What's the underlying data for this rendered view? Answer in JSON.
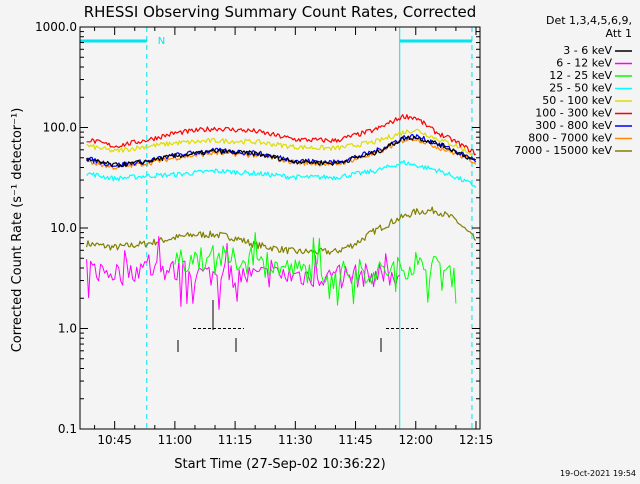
{
  "chart_data": {
    "type": "line",
    "title": "RHESSI Observing Summary Count Rates, Corrected",
    "xlabel": "Start Time (27-Sep-02 10:36:22)",
    "ylabel": "Corrected Count Rate (s⁻¹ detector⁻¹)",
    "y_scale": "log",
    "ylim": [
      0.1,
      1000
    ],
    "y_ticks": [
      {
        "value": 0.1,
        "label": "0.1"
      },
      {
        "value": 1,
        "label": "1.0"
      },
      {
        "value": 10,
        "label": "10.0"
      },
      {
        "value": 100,
        "label": "100.0"
      },
      {
        "value": 1000,
        "label": "1000.0"
      }
    ],
    "xlim_minutes": [
      10.6,
      2.0
    ],
    "x_range": [
      "10:36:22",
      "12:16"
    ],
    "x_ticks": [
      {
        "time": "10:45",
        "label": "10:45"
      },
      {
        "time": "11:00",
        "label": "11:00"
      },
      {
        "time": "11:15",
        "label": "11:15"
      },
      {
        "time": "11:30",
        "label": "11:30"
      },
      {
        "time": "11:45",
        "label": "11:45"
      },
      {
        "time": "12:00",
        "label": "12:00"
      },
      {
        "time": "12:15",
        "label": "12:15"
      }
    ],
    "legend_placement": "top-right outside",
    "legend_header": [
      "Det 1,3,4,5,6,9,",
      "Att 1"
    ],
    "timestamp": "19-Oct-2021 19:54",
    "annotations": [
      {
        "text": "N",
        "time": "10:55"
      }
    ],
    "night_intervals": [
      {
        "start": "10:36:22",
        "end": "10:53"
      },
      {
        "start": "11:56",
        "end": "12:14"
      }
    ],
    "vertical_markers": [
      "10:36:22",
      "10:53",
      "11:56",
      "12:14"
    ],
    "grid": false,
    "series": [
      {
        "name": "3 - 6 keV",
        "color": "#000000",
        "times": [
          "10:38",
          "10:45",
          "10:50",
          "11:00",
          "11:10",
          "11:20",
          "11:30",
          "11:40",
          "11:50",
          "11:57",
          "12:00",
          "12:05",
          "12:10",
          "12:15"
        ],
        "values": [
          48,
          42,
          44,
          52,
          58,
          55,
          46,
          44,
          56,
          78,
          80,
          70,
          58,
          46
        ]
      },
      {
        "name": "6 - 12 keV",
        "color": "#ff00ff",
        "times": [
          "10:38",
          "10:45",
          "10:53",
          "11:00",
          "11:10",
          "11:20",
          "11:30",
          "11:40",
          "11:50",
          "11:56"
        ],
        "values": [
          3.8,
          3.6,
          4.0,
          3.7,
          3.4,
          3.3,
          3.4,
          3.3,
          3.4,
          3.4
        ]
      },
      {
        "name": "12 - 25 keV",
        "color": "#00ff00",
        "times": [
          "11:00",
          "11:05",
          "11:10",
          "11:15",
          "11:20",
          "11:30",
          "11:40",
          "11:50",
          "11:56",
          "12:00",
          "12:05",
          "12:10"
        ],
        "values": [
          4.5,
          5.0,
          5.2,
          4.8,
          4.4,
          3.8,
          3.6,
          3.6,
          4.0,
          4.2,
          4.0,
          3.6
        ]
      },
      {
        "name": "25 - 50 keV",
        "color": "#00ffff",
        "times": [
          "10:38",
          "10:45",
          "10:53",
          "11:00",
          "11:10",
          "11:20",
          "11:30",
          "11:40",
          "11:50",
          "11:57",
          "12:00",
          "12:05",
          "12:10",
          "12:15"
        ],
        "values": [
          35,
          31,
          33,
          34,
          37,
          35,
          32,
          32,
          37,
          45,
          42,
          38,
          32,
          26
        ]
      },
      {
        "name": "50 - 100 keV",
        "color": "#dddd00",
        "times": [
          "10:38",
          "10:45",
          "10:53",
          "11:00",
          "11:10",
          "11:20",
          "11:30",
          "11:40",
          "11:50",
          "11:57",
          "12:00",
          "12:05",
          "12:10",
          "12:15"
        ],
        "values": [
          66,
          58,
          65,
          70,
          74,
          72,
          64,
          62,
          72,
          90,
          95,
          78,
          66,
          52
        ]
      },
      {
        "name": "100 - 300 keV",
        "color": "#ff0000",
        "times": [
          "10:38",
          "10:45",
          "10:53",
          "11:00",
          "11:10",
          "11:20",
          "11:30",
          "11:40",
          "11:50",
          "11:57",
          "12:00",
          "12:05",
          "12:10",
          "12:15"
        ],
        "values": [
          76,
          65,
          75,
          88,
          98,
          92,
          76,
          74,
          95,
          130,
          125,
          90,
          72,
          55
        ]
      },
      {
        "name": "300 - 800 keV",
        "color": "#0000ff",
        "times": [
          "10:38",
          "10:45",
          "10:53",
          "11:00",
          "11:10",
          "11:20",
          "11:30",
          "11:40",
          "11:50",
          "11:57",
          "12:00",
          "12:05",
          "12:10",
          "12:15"
        ],
        "values": [
          49,
          42,
          46,
          53,
          59,
          56,
          47,
          45,
          58,
          80,
          82,
          70,
          58,
          47
        ]
      },
      {
        "name": "800 - 7000 keV",
        "color": "#ff8800",
        "times": [
          "10:38",
          "10:45",
          "10:53",
          "11:00",
          "11:10",
          "11:20",
          "11:30",
          "11:40",
          "11:50",
          "11:57",
          "12:00",
          "12:05",
          "12:10",
          "12:15"
        ],
        "values": [
          46,
          40,
          44,
          50,
          56,
          53,
          45,
          43,
          55,
          75,
          78,
          65,
          55,
          45
        ]
      },
      {
        "name": "7000 - 15000 keV",
        "color": "#808000",
        "times": [
          "10:38",
          "10:45",
          "10:53",
          "11:00",
          "11:05",
          "11:10",
          "11:15",
          "11:20",
          "11:30",
          "11:40",
          "11:45",
          "11:50",
          "11:55",
          "12:00",
          "12:05",
          "12:10",
          "12:15"
        ],
        "values": [
          7.0,
          6.4,
          7.0,
          8.0,
          8.6,
          8.6,
          8.0,
          6.8,
          5.8,
          5.8,
          7.0,
          9.5,
          12.0,
          14.5,
          15.0,
          12.0,
          7.5
        ]
      }
    ]
  }
}
